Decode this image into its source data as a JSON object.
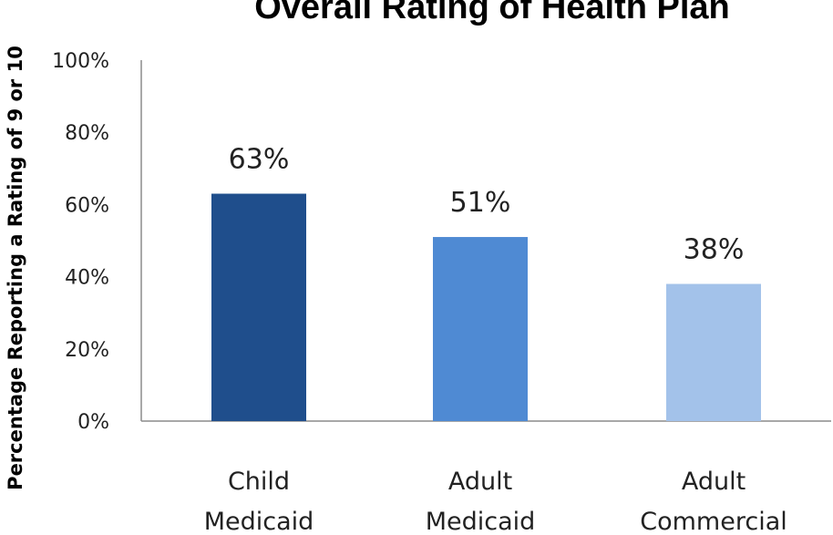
{
  "chart_data": {
    "type": "bar",
    "title": "Overall Rating of Health Plan",
    "ylabel": "Percentage Reporting a Rating of 9 or 10",
    "xlabel": "",
    "ylim": [
      0,
      100
    ],
    "yticks": [
      "0%",
      "20%",
      "40%",
      "60%",
      "80%",
      "100%"
    ],
    "categories": [
      [
        "Child",
        "Medicaid"
      ],
      [
        "Adult",
        "Medicaid"
      ],
      [
        "Adult",
        "Commercial"
      ]
    ],
    "values": [
      63,
      51,
      38
    ],
    "data_labels": [
      "63%",
      "51%",
      "38%"
    ],
    "bar_colors": [
      "#1f4e8c",
      "#4f8ad3",
      "#a3c2ea"
    ],
    "grid": false,
    "legend": "none"
  }
}
